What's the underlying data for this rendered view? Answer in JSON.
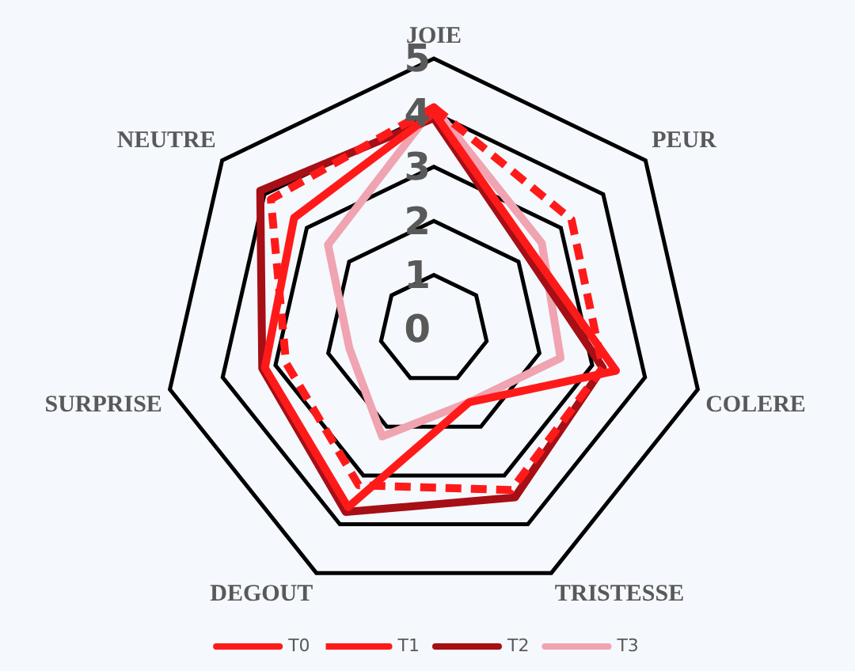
{
  "chart_data": {
    "type": "radar",
    "categories": [
      "JOIE",
      "PEUR",
      "COLERE",
      "TRISTESSE",
      "DEGOUT",
      "SURPRISE",
      "NEUTRE"
    ],
    "series": [
      {
        "name": "T0",
        "color": "#ff1a1a",
        "values": [
          4.0,
          2.3,
          3.45,
          1.5,
          3.65,
          3.2,
          3.3
        ]
      },
      {
        "name": "T1",
        "color": "#ff1a1a",
        "line_style": "dashed",
        "values": [
          4.1,
          3.25,
          3.2,
          3.3,
          3.2,
          2.8,
          3.85
        ]
      },
      {
        "name": "T2",
        "color": "#a50f15",
        "values": [
          3.9,
          2.2,
          3.2,
          3.45,
          3.75,
          3.25,
          4.1
        ]
      },
      {
        "name": "T3",
        "color": "#f0a3b0",
        "values": [
          4.1,
          2.55,
          2.4,
          1.5,
          2.2,
          1.6,
          2.5
        ]
      }
    ],
    "ylim": [
      0,
      5
    ],
    "yticks": [
      0,
      1,
      2,
      3,
      4,
      5
    ],
    "grid": true,
    "legend": "bottom",
    "marker": "none"
  }
}
